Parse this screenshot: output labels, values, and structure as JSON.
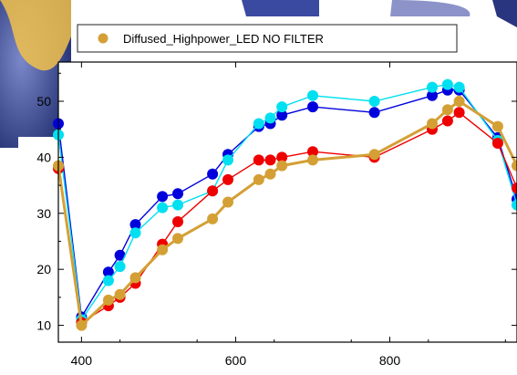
{
  "chart_data": {
    "type": "line",
    "title": "",
    "xlabel": "",
    "ylabel": "",
    "xlim": [
      370,
      965
    ],
    "ylim": [
      7,
      57
    ],
    "xticks": [
      400,
      600,
      800
    ],
    "yticks": [
      10,
      20,
      30,
      40,
      50
    ],
    "grid": false,
    "legend": {
      "placement": "top",
      "entries": [
        "Diffused_Highpower_LED NO FILTER"
      ]
    },
    "x": [
      370,
      400,
      435,
      450,
      470,
      505,
      525,
      570,
      590,
      630,
      645,
      660,
      700,
      780,
      855,
      875,
      890,
      940,
      965
    ],
    "series": [
      {
        "name": "Diffused_Highpower_LED NO FILTER",
        "color": "#d4a035",
        "values": [
          38.5,
          10.0,
          14.5,
          15.5,
          18.5,
          23.5,
          25.5,
          29.0,
          32.0,
          36.0,
          37.0,
          38.5,
          39.5,
          40.5,
          46.0,
          48.5,
          50.0,
          45.5,
          38.5
        ]
      },
      {
        "color": "#ee0000",
        "values": [
          38.0,
          10.5,
          13.5,
          15.0,
          17.5,
          24.5,
          28.5,
          34.0,
          36.0,
          39.5,
          39.5,
          40.0,
          41.0,
          40.0,
          45.0,
          46.5,
          48.0,
          42.5,
          34.5
        ]
      },
      {
        "color": "#00e0f0",
        "values": [
          44.0,
          11.0,
          18.0,
          20.5,
          26.5,
          31.0,
          31.5,
          34.0,
          39.5,
          46.0,
          47.0,
          49.0,
          51.0,
          50.0,
          52.5,
          53.0,
          52.5,
          43.0,
          31.5
        ]
      },
      {
        "color": "#0000dd",
        "values": [
          46.0,
          11.5,
          19.5,
          22.5,
          28.0,
          33.0,
          33.5,
          37.0,
          40.5,
          45.5,
          46.0,
          47.5,
          49.0,
          48.0,
          51.0,
          52.0,
          52.0,
          43.5,
          32.5
        ]
      }
    ]
  }
}
